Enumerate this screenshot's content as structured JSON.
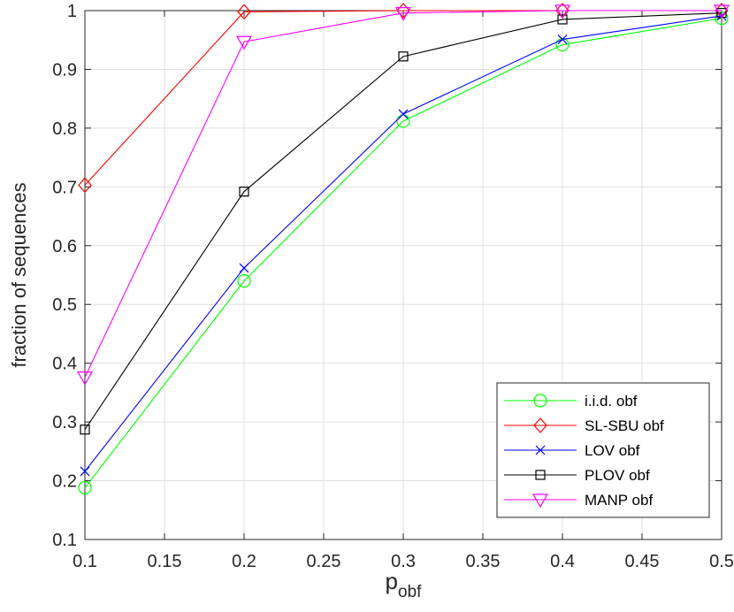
{
  "chart_data": {
    "type": "line",
    "title": "",
    "xlabel": "p",
    "xlabel_subscript": "obf",
    "ylabel": "fraction of sequences",
    "xlim": [
      0.1,
      0.5
    ],
    "ylim": [
      0.1,
      1
    ],
    "grid": true,
    "legend_position": "bottom-right",
    "x": [
      0.1,
      0.2,
      0.3,
      0.4,
      0.5
    ],
    "xticks": [
      "0.1",
      "0.15",
      "0.2",
      "0.25",
      "0.3",
      "0.35",
      "0.4",
      "0.45",
      "0.5"
    ],
    "yticks": [
      "0.1",
      "0.2",
      "0.3",
      "0.4",
      "0.5",
      "0.6",
      "0.7",
      "0.8",
      "0.9",
      "1"
    ],
    "series": [
      {
        "name": "i.i.d. obf",
        "color": "#00ff00",
        "marker": "circle",
        "values": [
          0.188,
          0.54,
          0.812,
          0.942,
          0.987
        ]
      },
      {
        "name": "SL-SBU obf",
        "color": "#ff0000",
        "marker": "diamond",
        "values": [
          0.703,
          0.998,
          1.0,
          1.0,
          1.0
        ]
      },
      {
        "name": "LOV obf",
        "color": "#0000ff",
        "marker": "x",
        "values": [
          0.216,
          0.562,
          0.824,
          0.951,
          0.991
        ]
      },
      {
        "name": "PLOV obf",
        "color": "#000000",
        "marker": "square",
        "values": [
          0.287,
          0.692,
          0.922,
          0.985,
          0.996
        ]
      },
      {
        "name": "MANP obf",
        "color": "#ff00ff",
        "marker": "triangle-down",
        "values": [
          0.376,
          0.947,
          0.996,
          1.0,
          1.0
        ]
      }
    ]
  }
}
